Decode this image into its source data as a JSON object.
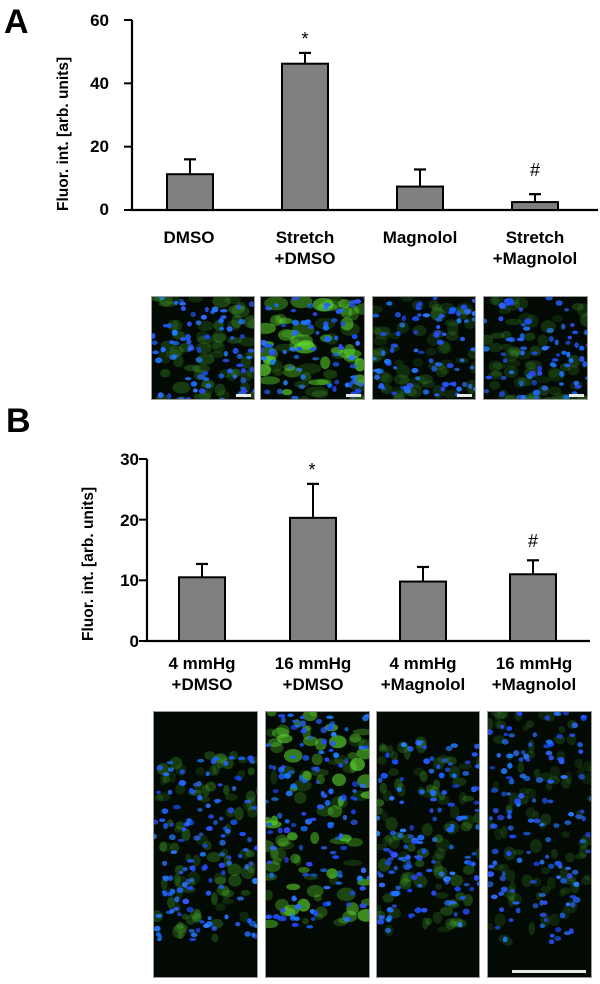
{
  "panels": {
    "A": {
      "letter": "A"
    },
    "B": {
      "letter": "B"
    }
  },
  "chart_data": [
    {
      "id": "A",
      "type": "bar",
      "title": "",
      "xlabel": "",
      "ylabel": "Fluor. int. [arb. units]",
      "ylim": [
        0,
        60
      ],
      "yticks": [
        "0",
        "20",
        "40",
        "60"
      ],
      "grid": false,
      "legend": null,
      "categories": [
        "DMSO",
        "Stretch +DMSO",
        "Magnolol",
        "Stretch +Magnolol"
      ],
      "category_lines": [
        [
          "DMSO"
        ],
        [
          "Stretch",
          "+DMSO"
        ],
        [
          "Magnolol"
        ],
        [
          "Stretch",
          "+Magnolol"
        ]
      ],
      "values": [
        11.3,
        46.2,
        7.4,
        2.5
      ],
      "error_upper": [
        4.7,
        3.4,
        5.4,
        2.5
      ],
      "annotations": [
        "",
        "*",
        "",
        "#"
      ],
      "bar_color": "#808080",
      "images": [
        {
          "condition": "DMSO",
          "green": "moderate"
        },
        {
          "condition": "Stretch +DMSO",
          "green": "strong"
        },
        {
          "condition": "Magnolol",
          "green": "weak"
        },
        {
          "condition": "Stretch +Magnolol",
          "green": "weak"
        }
      ]
    },
    {
      "id": "B",
      "type": "bar",
      "title": "",
      "xlabel": "",
      "ylabel": "Fluor. int. [arb. units]",
      "ylim": [
        0,
        30
      ],
      "yticks": [
        "0",
        "10",
        "20",
        "30"
      ],
      "grid": false,
      "legend": null,
      "categories": [
        "4 mmHg +DMSO",
        "16 mmHg +DMSO",
        "4 mmHg +Magnolol",
        "16 mmHg +Magnolol"
      ],
      "category_lines": [
        [
          "4 mmHg",
          "+DMSO"
        ],
        [
          "16 mmHg",
          "+DMSO"
        ],
        [
          "4 mmHg",
          "+Magnolol"
        ],
        [
          "16 mmHg",
          "+Magnolol"
        ]
      ],
      "values": [
        10.5,
        20.3,
        9.8,
        11.0
      ],
      "error_upper": [
        2.2,
        5.6,
        2.4,
        2.3
      ],
      "annotations": [
        "",
        "*",
        "",
        "#"
      ],
      "bar_color": "#808080",
      "images": [
        {
          "condition": "4 mmHg +DMSO",
          "green": "moderate"
        },
        {
          "condition": "16 mmHg +DMSO",
          "green": "strong"
        },
        {
          "condition": "4 mmHg +Magnolol",
          "green": "moderate"
        },
        {
          "condition": "16 mmHg +Magnolol",
          "green": "weak"
        }
      ]
    }
  ],
  "colors": {
    "bar_fill": "#808080",
    "bar_stroke": "#000000",
    "nuclei_blue": "#1f4fff",
    "signal_green": "#3fcf3f",
    "background_dark": "#030a03",
    "scalebar": "#e8e8e8"
  }
}
